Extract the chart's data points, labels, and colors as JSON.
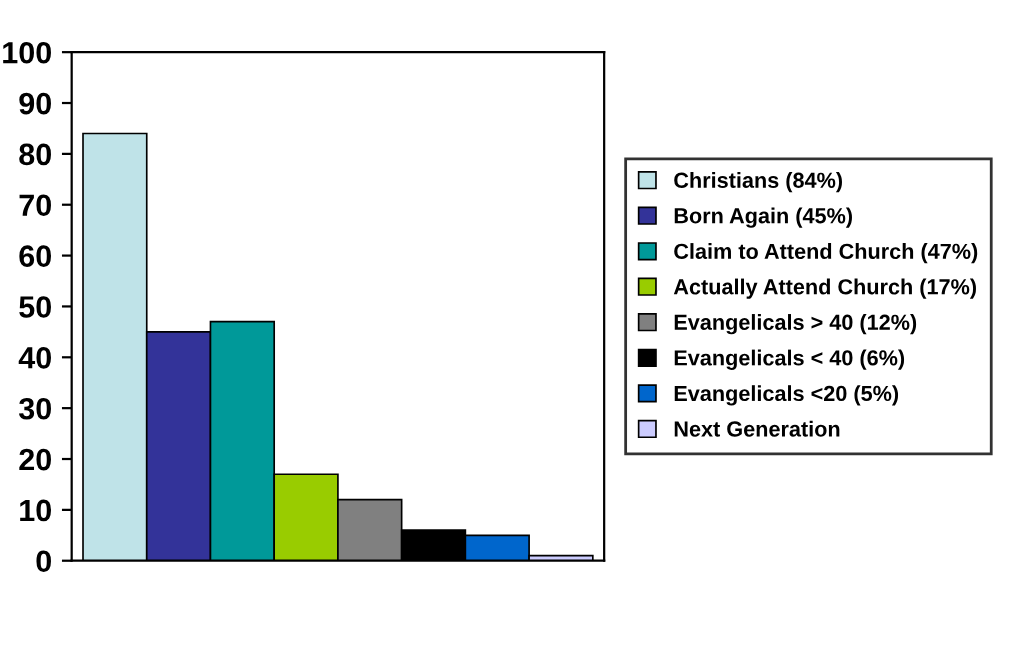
{
  "chart_data": {
    "type": "bar",
    "categories": [
      null
    ],
    "series": [
      {
        "name": "Christians (84%)",
        "color": "#bfe3e8",
        "values": [
          84
        ]
      },
      {
        "name": "Born Again (45%)",
        "color": "#333399",
        "values": [
          45
        ]
      },
      {
        "name": "Claim to Attend Church (47%)",
        "color": "#009999",
        "values": [
          47
        ]
      },
      {
        "name": "Actually Attend Church (17%)",
        "color": "#99cc00",
        "values": [
          17
        ]
      },
      {
        "name": "Evangelicals > 40 (12%)",
        "color": "#808080",
        "values": [
          12
        ]
      },
      {
        "name": "Evangelicals < 40 (6%)",
        "color": "#000000",
        "values": [
          6
        ]
      },
      {
        "name": "Evangelicals <20 (5%)",
        "color": "#0066cc",
        "values": [
          5
        ]
      },
      {
        "name": "Next Generation",
        "color": "#ccccff",
        "values": [
          1
        ]
      }
    ],
    "ylim": [
      0,
      100
    ],
    "yticks": [
      0,
      10,
      20,
      30,
      40,
      50,
      60,
      70,
      80,
      90,
      100
    ],
    "grid": false,
    "legend": "right"
  }
}
